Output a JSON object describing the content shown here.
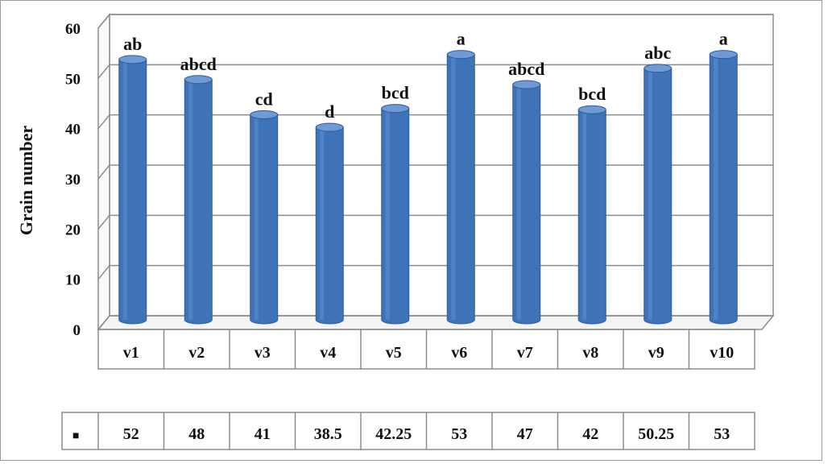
{
  "colors": {
    "bar": "#3F73B8",
    "bar_top": "#6E9AD6",
    "bar_edge": "#2E5A98",
    "grid": "#8C8C8C",
    "wall": "#FFFFFF",
    "frame": "#9A9A9A"
  },
  "chart_data": {
    "type": "bar",
    "style": "3d-cylinder",
    "title": "",
    "xlabel": "",
    "ylabel": "Grain number",
    "ylim": [
      0,
      60
    ],
    "yticks": [
      "0",
      "10",
      "20",
      "30",
      "40",
      "50",
      "60"
    ],
    "grid": true,
    "legend": "data-table",
    "legend_marker": "■",
    "categories": [
      "v1",
      "v2",
      "v3",
      "v4",
      "v5",
      "v6",
      "v7",
      "v8",
      "v9",
      "v10"
    ],
    "values": [
      52,
      48,
      41,
      38.5,
      42.25,
      53,
      47,
      42,
      50.25,
      53
    ],
    "value_labels": [
      "52",
      "48",
      "41",
      "38.5",
      "42.25",
      "53",
      "47",
      "42",
      "50.25",
      "53"
    ],
    "annotations": [
      "ab",
      "abcd",
      "cd",
      "d",
      "bcd",
      "a",
      "abcd",
      "bcd",
      "abc",
      "a"
    ]
  }
}
